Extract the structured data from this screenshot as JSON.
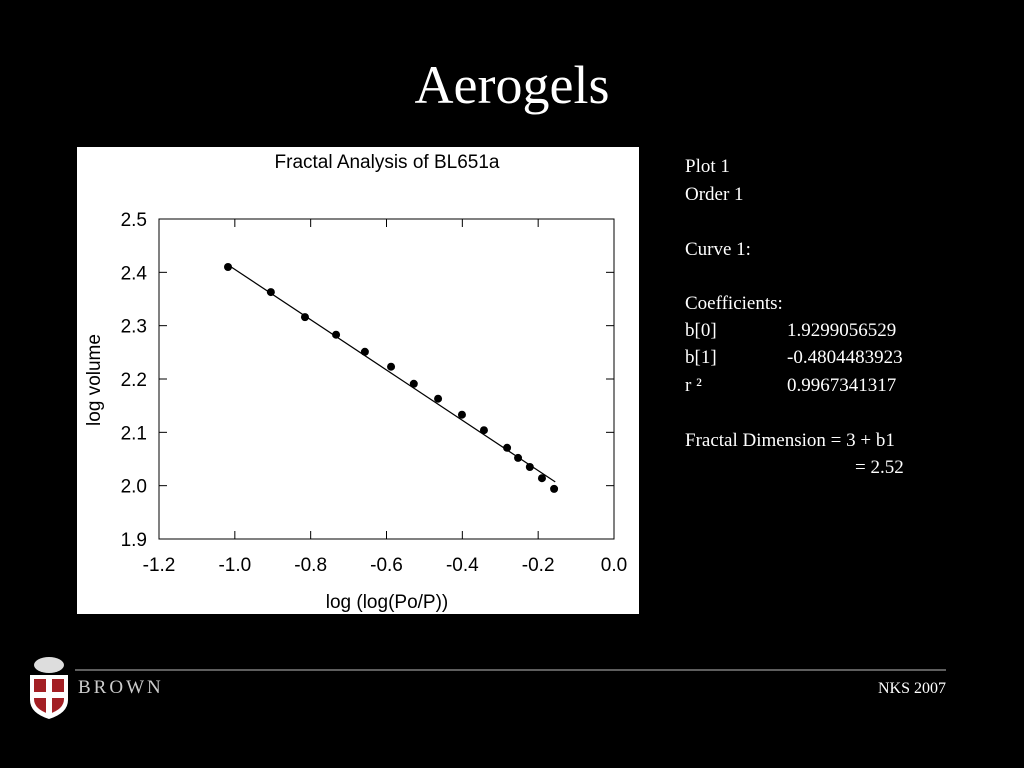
{
  "slide": {
    "title": "Aerogels",
    "notes": {
      "plot": "Plot 1",
      "order": "Order 1",
      "curve": "Curve 1:",
      "coefficients_heading": "Coefficients:",
      "coefficients": [
        {
          "name": "b[0]",
          "value": 1.9299056529
        },
        {
          "name": "b[1]",
          "value": -0.4804483923
        },
        {
          "name": "r ²",
          "value": 0.9967341317
        }
      ],
      "fractal_dimension": "Fractal Dimension = 3 + b1",
      "fractal_result": "= 2.52"
    },
    "footer": {
      "brand": "BROWN",
      "event": "NKS 2007"
    }
  },
  "chart_data": {
    "type": "scatter",
    "title": "Fractal Analysis of BL651a",
    "x_label": "log (log(Po/P))",
    "y_label": "log volume",
    "color": "#000000",
    "x": [
      -1.018,
      -0.905,
      -0.815,
      -0.733,
      -0.657,
      -0.588,
      -0.528,
      -0.464,
      -0.401,
      -0.343,
      -0.282,
      -0.253,
      -0.222,
      -0.19,
      -0.158
    ],
    "values": [
      2.41,
      2.363,
      2.316,
      2.283,
      2.251,
      2.223,
      2.191,
      2.163,
      2.133,
      2.104,
      2.071,
      2.052,
      2.035,
      2.014,
      1.994
    ],
    "fit": {
      "x": [
        -1.018,
        -0.155
      ],
      "values": [
        2.414,
        2.007
      ]
    },
    "xlim": [
      -1.2,
      0
    ],
    "ylim": [
      1.9,
      2.5
    ],
    "xticks": [
      -1.2,
      {
        "value": -1,
        "label": "-1.0"
      },
      -0.8,
      -0.6,
      -0.4,
      -0.2,
      {
        "value": 0,
        "label": "0.0"
      }
    ],
    "yticks": [
      1.9,
      {
        "value": 2,
        "label": "2.0"
      },
      2.1,
      2.2,
      2.3,
      2.4,
      2.5
    ]
  }
}
